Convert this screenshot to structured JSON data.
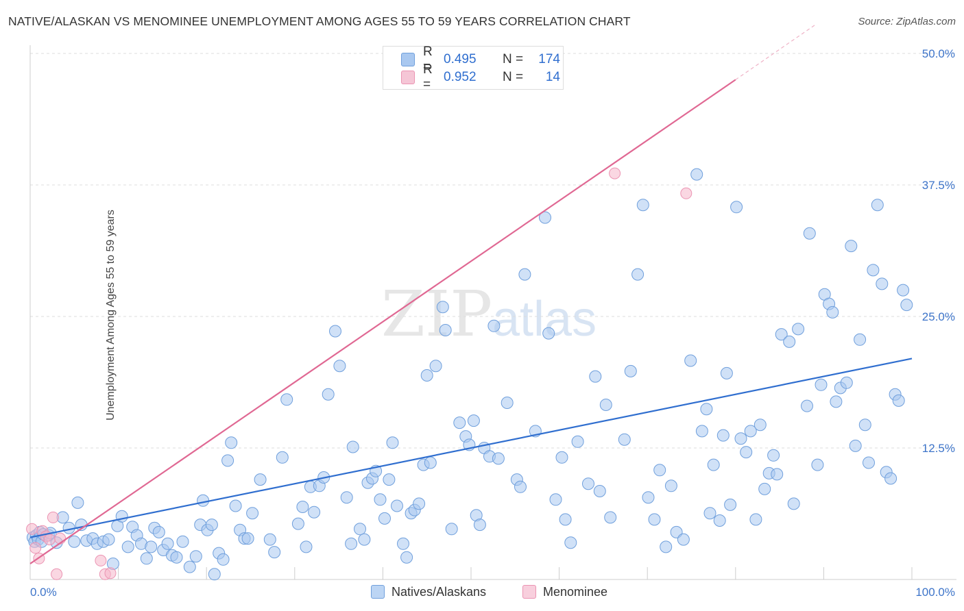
{
  "title": "NATIVE/ALASKAN VS MENOMINEE UNEMPLOYMENT AMONG AGES 55 TO 59 YEARS CORRELATION CHART",
  "source": "Source: ZipAtlas.com",
  "watermark": {
    "zip": "ZIP",
    "atlas": "atlas"
  },
  "colors": {
    "blue": "#2f6ecf",
    "blue_fill": "#a9c8f0",
    "blue_stroke": "#6f9fdc",
    "pink": "#e06893",
    "pink_fill": "#f5b6cb",
    "pink_stroke": "#eb93b2",
    "grid": "#dddddd",
    "tick_text": "#3d74c9"
  },
  "legend": [
    {
      "r_label": "R = ",
      "r_value": "0.495",
      "n_label": "N = ",
      "n_value": "174"
    },
    {
      "r_label": "R = ",
      "r_value": "0.952",
      "n_label": "N = ",
      "n_value": "14"
    }
  ],
  "bottom_legend": [
    "Natives/Alaskans",
    "Menominee"
  ],
  "chart_data": {
    "type": "scatter",
    "xlabel": "",
    "ylabel": "Unemployment Among Ages 55 to 59 years",
    "xlim": [
      0,
      100
    ],
    "ylim": [
      0,
      50
    ],
    "x_tick_labels": [
      "0.0%",
      "100.0%"
    ],
    "y_tick_labels": [
      "12.5%",
      "25.0%",
      "37.5%",
      "50.0%"
    ],
    "y_ticks": [
      12.5,
      25.0,
      37.5,
      50.0
    ],
    "series": [
      {
        "name": "Natives/Alaskans",
        "color": "#2f6ecf",
        "trend": {
          "x": [
            0,
            100
          ],
          "y": [
            4.0,
            21.0
          ]
        },
        "points": [
          [
            0.3,
            4.0
          ],
          [
            0.5,
            3.6
          ],
          [
            0.7,
            4.2
          ],
          [
            0.9,
            3.8
          ],
          [
            1.1,
            4.5
          ],
          [
            1.3,
            3.6
          ],
          [
            1.5,
            4.3
          ],
          [
            2.1,
            4.2
          ],
          [
            2.3,
            4.4
          ],
          [
            3.0,
            3.5
          ],
          [
            3.7,
            5.9
          ],
          [
            4.4,
            4.9
          ],
          [
            5.0,
            3.6
          ],
          [
            5.4,
            7.3
          ],
          [
            5.8,
            5.2
          ],
          [
            6.4,
            3.7
          ],
          [
            7.1,
            3.9
          ],
          [
            7.6,
            3.4
          ],
          [
            8.3,
            3.6
          ],
          [
            8.9,
            3.8
          ],
          [
            9.4,
            1.5
          ],
          [
            9.9,
            5.1
          ],
          [
            10.4,
            6.0
          ],
          [
            11.1,
            3.1
          ],
          [
            11.6,
            5.0
          ],
          [
            12.1,
            4.2
          ],
          [
            12.6,
            3.4
          ],
          [
            13.2,
            2.0
          ],
          [
            13.7,
            3.1
          ],
          [
            14.1,
            4.9
          ],
          [
            14.6,
            4.5
          ],
          [
            15.1,
            2.8
          ],
          [
            15.6,
            3.4
          ],
          [
            16.1,
            2.3
          ],
          [
            16.6,
            2.1
          ],
          [
            17.3,
            3.6
          ],
          [
            18.1,
            1.2
          ],
          [
            18.8,
            2.2
          ],
          [
            19.3,
            5.2
          ],
          [
            19.6,
            7.5
          ],
          [
            20.1,
            4.7
          ],
          [
            20.6,
            5.2
          ],
          [
            20.9,
            0.5
          ],
          [
            21.4,
            2.5
          ],
          [
            21.9,
            1.9
          ],
          [
            22.4,
            11.3
          ],
          [
            22.8,
            13.0
          ],
          [
            23.3,
            7.0
          ],
          [
            23.8,
            4.7
          ],
          [
            24.3,
            3.9
          ],
          [
            24.7,
            3.9
          ],
          [
            25.2,
            6.3
          ],
          [
            26.1,
            9.5
          ],
          [
            27.2,
            3.8
          ],
          [
            27.7,
            2.6
          ],
          [
            28.6,
            11.6
          ],
          [
            29.1,
            17.1
          ],
          [
            30.4,
            5.3
          ],
          [
            30.9,
            6.9
          ],
          [
            31.3,
            3.1
          ],
          [
            31.8,
            8.8
          ],
          [
            32.2,
            6.4
          ],
          [
            32.8,
            8.9
          ],
          [
            33.3,
            9.7
          ],
          [
            33.8,
            17.6
          ],
          [
            34.6,
            23.6
          ],
          [
            35.1,
            20.3
          ],
          [
            35.9,
            7.8
          ],
          [
            36.4,
            3.4
          ],
          [
            36.6,
            12.6
          ],
          [
            37.4,
            4.8
          ],
          [
            37.9,
            3.8
          ],
          [
            38.3,
            9.2
          ],
          [
            38.8,
            9.6
          ],
          [
            39.2,
            10.3
          ],
          [
            39.7,
            7.6
          ],
          [
            40.2,
            5.8
          ],
          [
            40.7,
            9.5
          ],
          [
            41.1,
            13.0
          ],
          [
            41.6,
            7.0
          ],
          [
            42.3,
            3.4
          ],
          [
            42.7,
            2.1
          ],
          [
            43.2,
            6.3
          ],
          [
            43.6,
            6.6
          ],
          [
            44.1,
            7.2
          ],
          [
            44.6,
            10.9
          ],
          [
            45.0,
            19.4
          ],
          [
            45.4,
            11.1
          ],
          [
            46.0,
            20.3
          ],
          [
            46.8,
            25.9
          ],
          [
            47.1,
            23.7
          ],
          [
            47.8,
            4.8
          ],
          [
            48.7,
            14.9
          ],
          [
            49.4,
            13.6
          ],
          [
            49.8,
            12.8
          ],
          [
            50.3,
            15.1
          ],
          [
            50.6,
            6.1
          ],
          [
            51.0,
            5.2
          ],
          [
            51.5,
            12.5
          ],
          [
            52.1,
            11.7
          ],
          [
            52.6,
            24.1
          ],
          [
            53.1,
            11.5
          ],
          [
            54.1,
            16.8
          ],
          [
            55.2,
            9.5
          ],
          [
            55.6,
            8.8
          ],
          [
            56.1,
            29.0
          ],
          [
            57.3,
            14.1
          ],
          [
            58.4,
            34.4
          ],
          [
            58.8,
            23.4
          ],
          [
            59.6,
            7.6
          ],
          [
            60.3,
            11.6
          ],
          [
            60.7,
            5.7
          ],
          [
            61.3,
            3.5
          ],
          [
            62.1,
            13.1
          ],
          [
            63.3,
            9.1
          ],
          [
            64.1,
            19.3
          ],
          [
            64.6,
            8.4
          ],
          [
            65.3,
            16.6
          ],
          [
            65.8,
            5.9
          ],
          [
            67.4,
            13.3
          ],
          [
            68.1,
            19.8
          ],
          [
            68.9,
            29.0
          ],
          [
            69.5,
            35.6
          ],
          [
            70.1,
            7.8
          ],
          [
            70.8,
            5.7
          ],
          [
            71.4,
            10.4
          ],
          [
            72.1,
            3.1
          ],
          [
            72.7,
            8.9
          ],
          [
            73.3,
            4.5
          ],
          [
            74.1,
            3.8
          ],
          [
            74.9,
            20.8
          ],
          [
            75.6,
            38.5
          ],
          [
            76.2,
            14.1
          ],
          [
            76.7,
            16.2
          ],
          [
            77.1,
            6.3
          ],
          [
            77.5,
            10.9
          ],
          [
            78.2,
            5.6
          ],
          [
            78.6,
            13.7
          ],
          [
            79.0,
            19.6
          ],
          [
            79.4,
            7.1
          ],
          [
            80.1,
            35.4
          ],
          [
            80.6,
            13.4
          ],
          [
            81.2,
            12.1
          ],
          [
            81.7,
            14.1
          ],
          [
            82.3,
            5.7
          ],
          [
            82.8,
            14.7
          ],
          [
            83.3,
            8.6
          ],
          [
            83.8,
            10.1
          ],
          [
            84.3,
            11.8
          ],
          [
            84.7,
            10.0
          ],
          [
            85.2,
            23.3
          ],
          [
            86.1,
            22.6
          ],
          [
            86.6,
            7.2
          ],
          [
            87.1,
            23.8
          ],
          [
            88.1,
            16.5
          ],
          [
            88.4,
            32.9
          ],
          [
            89.3,
            10.9
          ],
          [
            89.7,
            18.5
          ],
          [
            90.1,
            27.1
          ],
          [
            90.6,
            26.2
          ],
          [
            91.0,
            25.4
          ],
          [
            91.4,
            16.9
          ],
          [
            91.9,
            18.2
          ],
          [
            92.6,
            18.7
          ],
          [
            93.1,
            31.7
          ],
          [
            93.6,
            12.7
          ],
          [
            94.1,
            22.8
          ],
          [
            94.7,
            14.7
          ],
          [
            95.1,
            11.1
          ],
          [
            95.6,
            29.4
          ],
          [
            96.1,
            35.6
          ],
          [
            96.6,
            28.1
          ],
          [
            97.1,
            10.2
          ],
          [
            97.6,
            9.6
          ],
          [
            98.1,
            17.6
          ],
          [
            98.5,
            17.0
          ],
          [
            99.0,
            27.5
          ],
          [
            99.4,
            26.1
          ]
        ]
      },
      {
        "name": "Menominee",
        "color": "#e06893",
        "trend": {
          "x": [
            0,
            80
          ],
          "y": [
            1.5,
            47.5
          ]
        },
        "trend_dashed": {
          "x": [
            80,
            89
          ],
          "y": [
            47.5,
            52.7
          ]
        },
        "points": [
          [
            0.2,
            4.8
          ],
          [
            0.6,
            3.0
          ],
          [
            1.0,
            2.0
          ],
          [
            1.4,
            4.6
          ],
          [
            1.8,
            4.1
          ],
          [
            2.2,
            3.8
          ],
          [
            2.6,
            5.9
          ],
          [
            3.0,
            0.5
          ],
          [
            3.4,
            3.9
          ],
          [
            8.0,
            1.8
          ],
          [
            8.5,
            0.5
          ],
          [
            9.1,
            0.6
          ],
          [
            66.3,
            38.6
          ],
          [
            74.4,
            36.7
          ]
        ]
      }
    ]
  }
}
